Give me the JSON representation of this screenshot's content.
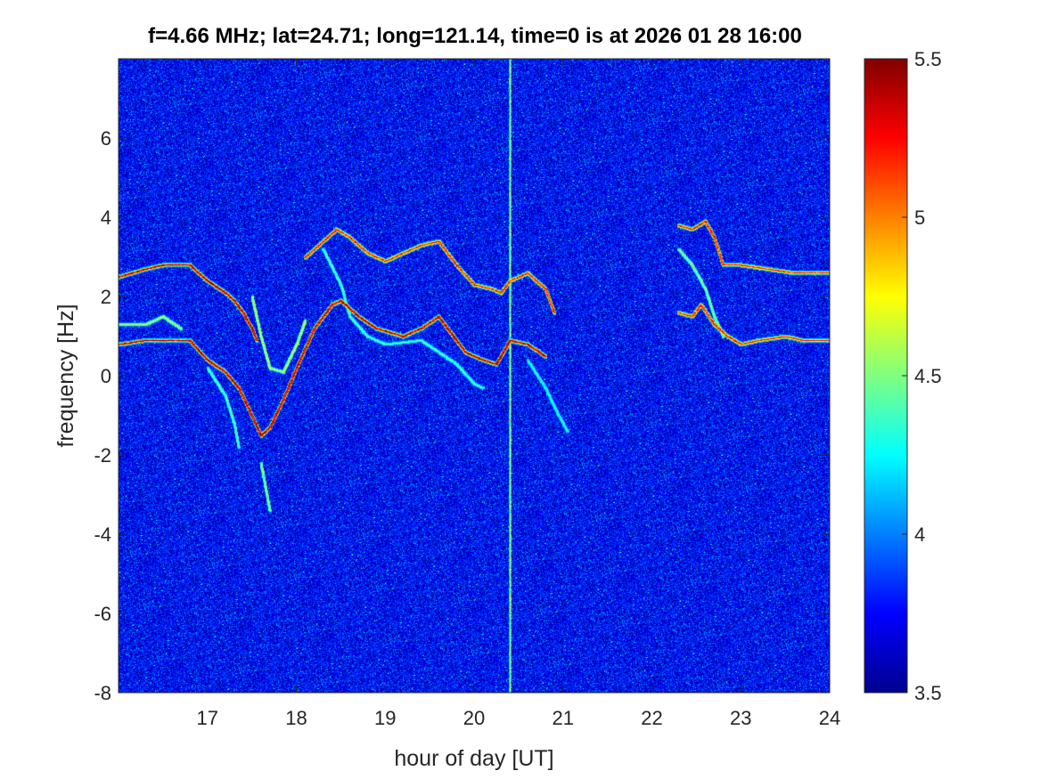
{
  "chart_data": {
    "type": "heatmap",
    "title": "f=4.66 MHz;  lat=24.71; long=121.14, time=0 is at 2026 01 28 16:00",
    "xlabel": "hour of day [UT]",
    "ylabel": "frequency [Hz]",
    "xlim": [
      16,
      24
    ],
    "ylim": [
      -8,
      8
    ],
    "xticks": [
      "17",
      "18",
      "19",
      "20",
      "21",
      "22",
      "23",
      "24"
    ],
    "yticks": [
      "-8",
      "-6",
      "-4",
      "-2",
      "0",
      "2",
      "4",
      "6"
    ],
    "colorbar": {
      "colormap": "jet",
      "clim": [
        3.5,
        5.5
      ],
      "ticks": [
        "3.5",
        "4",
        "4.5",
        "5",
        "5.5"
      ]
    },
    "background_level": 3.75,
    "vertical_band": {
      "x": 20.4,
      "level": 4.6
    },
    "traces": [
      {
        "level": 5.4,
        "points": [
          [
            16.0,
            2.5
          ],
          [
            16.3,
            2.7
          ],
          [
            16.5,
            2.8
          ],
          [
            16.8,
            2.8
          ],
          [
            17.0,
            2.4
          ],
          [
            17.2,
            2.1
          ],
          [
            17.3,
            1.9
          ],
          [
            17.4,
            1.6
          ],
          [
            17.5,
            1.2
          ],
          [
            17.55,
            0.9
          ]
        ]
      },
      {
        "level": 5.4,
        "points": [
          [
            16.0,
            0.8
          ],
          [
            16.3,
            0.9
          ],
          [
            16.5,
            0.9
          ],
          [
            16.8,
            0.9
          ],
          [
            17.0,
            0.4
          ],
          [
            17.2,
            0.1
          ],
          [
            17.35,
            -0.3
          ],
          [
            17.5,
            -1.0
          ],
          [
            17.6,
            -1.5
          ],
          [
            17.7,
            -1.3
          ],
          [
            17.85,
            -0.6
          ],
          [
            18.0,
            0.2
          ],
          [
            18.2,
            1.2
          ],
          [
            18.4,
            1.8
          ],
          [
            18.5,
            1.9
          ],
          [
            18.7,
            1.5
          ],
          [
            18.9,
            1.2
          ],
          [
            19.2,
            1.0
          ],
          [
            19.4,
            1.2
          ],
          [
            19.6,
            1.5
          ],
          [
            19.7,
            1.2
          ],
          [
            19.9,
            0.6
          ],
          [
            20.1,
            0.4
          ],
          [
            20.25,
            0.3
          ],
          [
            20.4,
            0.9
          ],
          [
            20.6,
            0.8
          ],
          [
            20.8,
            0.5
          ]
        ]
      },
      {
        "level": 5.2,
        "points": [
          [
            18.1,
            3.0
          ],
          [
            18.3,
            3.4
          ],
          [
            18.45,
            3.7
          ],
          [
            18.6,
            3.5
          ],
          [
            18.8,
            3.1
          ],
          [
            19.0,
            2.9
          ],
          [
            19.2,
            3.1
          ],
          [
            19.4,
            3.3
          ],
          [
            19.6,
            3.4
          ],
          [
            19.8,
            2.8
          ],
          [
            20.0,
            2.3
          ],
          [
            20.2,
            2.2
          ],
          [
            20.3,
            2.1
          ],
          [
            20.4,
            2.4
          ],
          [
            20.6,
            2.6
          ],
          [
            20.8,
            2.2
          ],
          [
            20.9,
            1.6
          ]
        ]
      },
      {
        "level": 4.6,
        "points": [
          [
            17.5,
            2.0
          ],
          [
            17.6,
            1.0
          ],
          [
            17.7,
            0.2
          ],
          [
            17.85,
            0.1
          ],
          [
            18.0,
            0.8
          ],
          [
            18.1,
            1.4
          ]
        ]
      },
      {
        "level": 4.5,
        "points": [
          [
            17.6,
            -2.2
          ],
          [
            17.65,
            -2.8
          ],
          [
            17.7,
            -3.4
          ]
        ]
      },
      {
        "level": 4.4,
        "points": [
          [
            18.3,
            3.2
          ],
          [
            18.5,
            2.3
          ],
          [
            18.6,
            1.5
          ],
          [
            18.8,
            1.0
          ],
          [
            19.0,
            0.8
          ],
          [
            19.4,
            0.9
          ],
          [
            19.8,
            0.3
          ],
          [
            20.0,
            -0.2
          ],
          [
            20.1,
            -0.3
          ]
        ]
      },
      {
        "level": 4.4,
        "points": [
          [
            17.0,
            0.2
          ],
          [
            17.2,
            -0.5
          ],
          [
            17.3,
            -1.2
          ],
          [
            17.35,
            -1.8
          ]
        ]
      },
      {
        "level": 4.3,
        "points": [
          [
            20.6,
            0.4
          ],
          [
            20.8,
            -0.3
          ],
          [
            20.95,
            -1.0
          ],
          [
            21.05,
            -1.4
          ]
        ]
      },
      {
        "level": 4.6,
        "points": [
          [
            16.0,
            1.3
          ],
          [
            16.3,
            1.3
          ],
          [
            16.5,
            1.5
          ],
          [
            16.7,
            1.2
          ]
        ]
      },
      {
        "level": 5.2,
        "points": [
          [
            22.3,
            3.8
          ],
          [
            22.45,
            3.7
          ],
          [
            22.6,
            3.9
          ],
          [
            22.7,
            3.5
          ],
          [
            22.8,
            2.8
          ],
          [
            23.0,
            2.8
          ],
          [
            23.3,
            2.7
          ],
          [
            23.6,
            2.6
          ],
          [
            24.0,
            2.6
          ]
        ]
      },
      {
        "level": 5.2,
        "points": [
          [
            22.3,
            1.6
          ],
          [
            22.45,
            1.5
          ],
          [
            22.55,
            1.8
          ],
          [
            22.7,
            1.3
          ],
          [
            22.85,
            1.0
          ],
          [
            23.0,
            0.8
          ],
          [
            23.2,
            0.9
          ],
          [
            23.5,
            1.0
          ],
          [
            23.7,
            0.9
          ],
          [
            24.0,
            0.9
          ]
        ]
      },
      {
        "level": 4.5,
        "points": [
          [
            22.3,
            3.2
          ],
          [
            22.45,
            2.8
          ],
          [
            22.6,
            2.2
          ],
          [
            22.7,
            1.5
          ],
          [
            22.8,
            1.0
          ]
        ]
      }
    ]
  }
}
